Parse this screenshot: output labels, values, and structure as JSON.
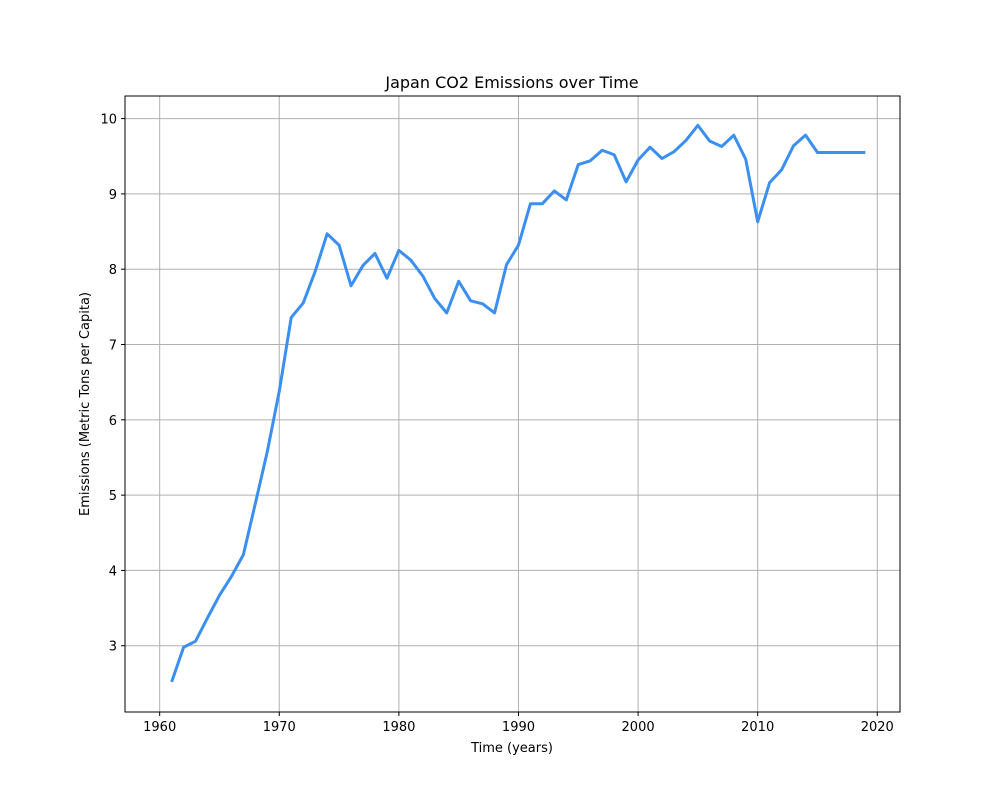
{
  "chart_data": {
    "type": "line",
    "title": "Japan CO2 Emissions over Time",
    "xlabel": "Time (years)",
    "ylabel": "Emissions (Metric Tons per Capita)",
    "xlim": [
      1957.1,
      2021.9
    ],
    "ylim": [
      2.12,
      10.3
    ],
    "xticks": [
      1960,
      1970,
      1980,
      1990,
      2000,
      2010,
      2020
    ],
    "yticks": [
      3,
      4,
      5,
      6,
      7,
      8,
      9,
      10
    ],
    "grid": true,
    "line_color": "#3a8ff0",
    "x": [
      1961,
      1962,
      1963,
      1964,
      1965,
      1966,
      1967,
      1968,
      1969,
      1970,
      1971,
      1972,
      1973,
      1974,
      1975,
      1976,
      1977,
      1978,
      1979,
      1980,
      1981,
      1982,
      1983,
      1984,
      1985,
      1986,
      1987,
      1988,
      1989,
      1990,
      1991,
      1992,
      1993,
      1994,
      1995,
      1996,
      1997,
      1998,
      1999,
      2000,
      2001,
      2002,
      2003,
      2004,
      2005,
      2006,
      2007,
      2008,
      2009,
      2010,
      2011,
      2012,
      2013,
      2014,
      2015,
      2016,
      2017,
      2018,
      2019
    ],
    "series": [
      {
        "values": [
          2.52,
          2.98,
          3.06,
          3.37,
          3.67,
          3.92,
          4.21,
          4.89,
          5.58,
          6.38,
          7.36,
          7.55,
          7.97,
          8.47,
          8.32,
          7.78,
          8.05,
          8.21,
          7.88,
          8.25,
          8.12,
          7.91,
          7.61,
          7.42,
          7.84,
          7.58,
          7.54,
          7.42,
          8.06,
          8.32,
          8.87,
          8.87,
          9.04,
          8.92,
          9.39,
          9.44,
          9.58,
          9.52,
          9.16,
          9.45,
          9.62,
          9.47,
          9.56,
          9.71,
          9.91,
          9.7,
          9.63,
          9.78,
          9.46,
          8.63,
          9.15,
          9.32,
          9.64,
          9.78,
          9.55,
          9.55,
          9.55,
          9.55,
          9.55
        ]
      }
    ]
  }
}
